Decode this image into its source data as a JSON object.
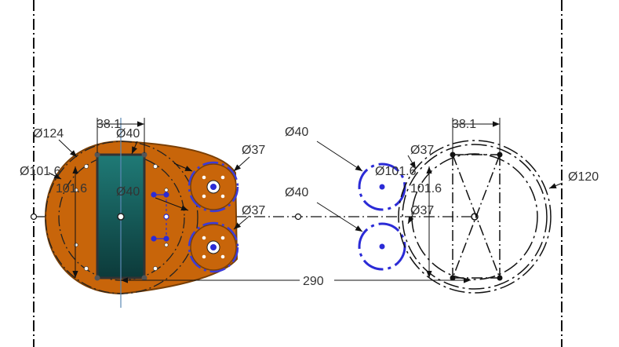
{
  "app": {
    "view": "sketch-canvas"
  },
  "colors": {
    "background": "#ffffff",
    "part_fill": "#c8650a",
    "part_stroke": "#7a3f05",
    "pocket_top": "#1f7a76",
    "pocket_bottom": "#0c3a3a",
    "dimension_text": "#333333",
    "sketch_blue": "#2b2bd6",
    "centerline": "#111111"
  },
  "dimensions": {
    "left_part": {
      "diameter_outer": "Ø124",
      "diameter_bolt": "Ø101.6",
      "bolt_span": "101.6",
      "width_top": "38.1",
      "hole_top": "Ø40",
      "hole_center": "Ø40",
      "boss_upper": "Ø37",
      "boss_lower": "Ø37"
    },
    "middle": {
      "circle_upper": "Ø40",
      "circle_lower": "Ø40",
      "diameter_bolt": "Ø101.6",
      "boss_upper": "Ø37",
      "boss_lower": "Ø37",
      "bolt_span": "101.6"
    },
    "right_part": {
      "width_top": "38.1",
      "diameter_outer": "Ø120"
    },
    "center_distance": "290"
  }
}
